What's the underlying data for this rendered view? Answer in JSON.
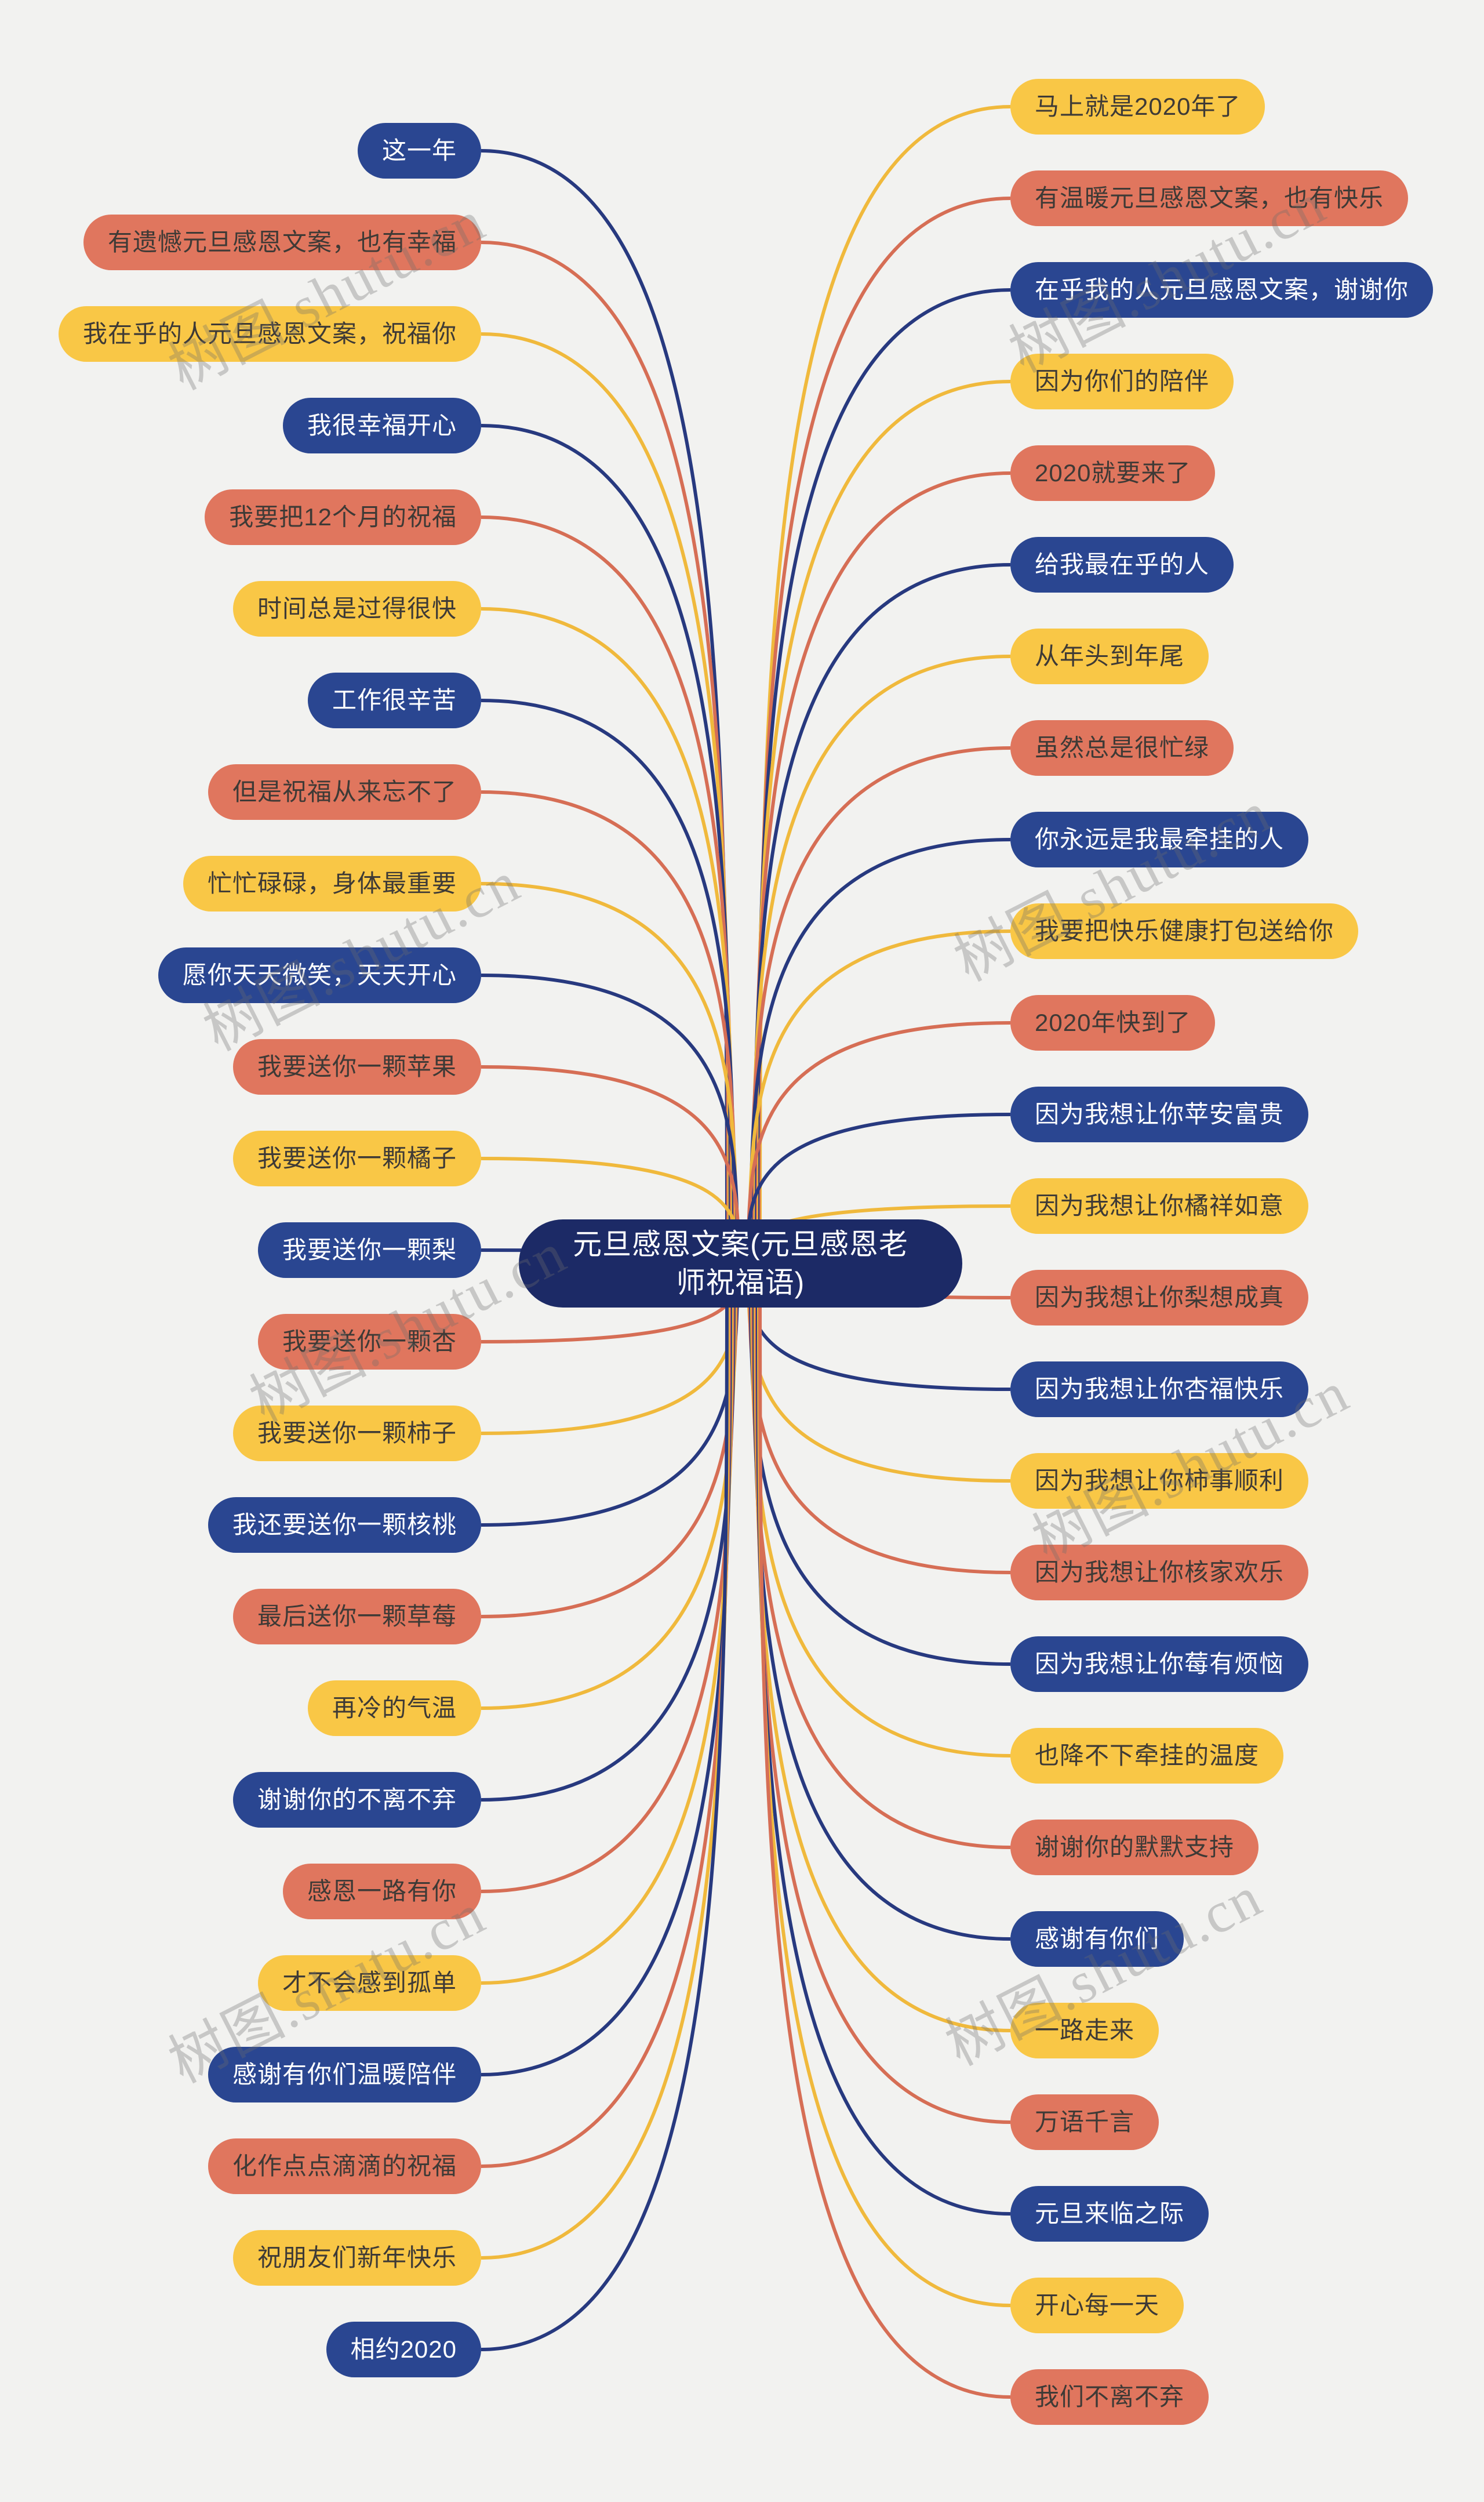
{
  "title": "元旦感恩文案(元旦感恩老师祝福语)",
  "palette": {
    "background": "#f2f2f0",
    "central_bg": "#1c2a66",
    "central_text": "#ffffff",
    "navy": "#2a4691",
    "navy_text": "#ffffff",
    "navy_line": "#27397f",
    "red": "#e0765e",
    "red_text": "#3e3a36",
    "red_line": "#d66e55",
    "yellow": "#f9c746",
    "yellow_text": "#3e3a36",
    "yellow_line": "#f0b93c"
  },
  "watermark": {
    "text": "树图.shutu.cn"
  },
  "left_branches": [
    {
      "label": "这一年",
      "color": "navy"
    },
    {
      "label": "有遗憾元旦感恩文案，也有幸福",
      "color": "red"
    },
    {
      "label": "我在乎的人元旦感恩文案，祝福你",
      "color": "yellow"
    },
    {
      "label": "我很幸福开心",
      "color": "navy"
    },
    {
      "label": "我要把12个月的祝福",
      "color": "red"
    },
    {
      "label": "时间总是过得很快",
      "color": "yellow"
    },
    {
      "label": "工作很辛苦",
      "color": "navy"
    },
    {
      "label": "但是祝福从来忘不了",
      "color": "red"
    },
    {
      "label": "忙忙碌碌，身体最重要",
      "color": "yellow"
    },
    {
      "label": "愿你天天微笑，天天开心",
      "color": "navy"
    },
    {
      "label": "我要送你一颗苹果",
      "color": "red"
    },
    {
      "label": "我要送你一颗橘子",
      "color": "yellow"
    },
    {
      "label": "我要送你一颗梨",
      "color": "navy"
    },
    {
      "label": "我要送你一颗杏",
      "color": "red"
    },
    {
      "label": "我要送你一颗柿子",
      "color": "yellow"
    },
    {
      "label": "我还要送你一颗核桃",
      "color": "navy"
    },
    {
      "label": "最后送你一颗草莓",
      "color": "red"
    },
    {
      "label": "再冷的气温",
      "color": "yellow"
    },
    {
      "label": "谢谢你的不离不弃",
      "color": "navy"
    },
    {
      "label": "感恩一路有你",
      "color": "red"
    },
    {
      "label": "才不会感到孤单",
      "color": "yellow"
    },
    {
      "label": "感谢有你们温暖陪伴",
      "color": "navy"
    },
    {
      "label": "化作点点滴滴的祝福",
      "color": "red"
    },
    {
      "label": "祝朋友们新年快乐",
      "color": "yellow"
    },
    {
      "label": "相约2020",
      "color": "navy"
    }
  ],
  "right_branches": [
    {
      "label": "马上就是2020年了",
      "color": "yellow"
    },
    {
      "label": "有温暖元旦感恩文案，也有快乐",
      "color": "red"
    },
    {
      "label": "在乎我的人元旦感恩文案，谢谢你",
      "color": "navy"
    },
    {
      "label": "因为你们的陪伴",
      "color": "yellow"
    },
    {
      "label": "2020就要来了",
      "color": "red"
    },
    {
      "label": "给我最在乎的人",
      "color": "navy"
    },
    {
      "label": "从年头到年尾",
      "color": "yellow"
    },
    {
      "label": "虽然总是很忙绿",
      "color": "red"
    },
    {
      "label": "你永远是我最牵挂的人",
      "color": "navy"
    },
    {
      "label": "我要把快乐健康打包送给你",
      "color": "yellow"
    },
    {
      "label": "2020年快到了",
      "color": "red"
    },
    {
      "label": "因为我想让你苹安富贵",
      "color": "navy"
    },
    {
      "label": "因为我想让你橘祥如意",
      "color": "yellow"
    },
    {
      "label": "因为我想让你梨想成真",
      "color": "red"
    },
    {
      "label": "因为我想让你杏福快乐",
      "color": "navy"
    },
    {
      "label": "因为我想让你柿事顺利",
      "color": "yellow"
    },
    {
      "label": "因为我想让你核家欢乐",
      "color": "red"
    },
    {
      "label": "因为我想让你莓有烦恼",
      "color": "navy"
    },
    {
      "label": "也降不下牵挂的温度",
      "color": "yellow"
    },
    {
      "label": "谢谢你的默默支持",
      "color": "red"
    },
    {
      "label": "感谢有你们",
      "color": "navy"
    },
    {
      "label": "一路走来",
      "color": "yellow"
    },
    {
      "label": "万语千言",
      "color": "red"
    },
    {
      "label": "元旦来临之际",
      "color": "navy"
    },
    {
      "label": "开心每一天",
      "color": "yellow"
    },
    {
      "label": "我们不离不弃",
      "color": "red"
    }
  ]
}
